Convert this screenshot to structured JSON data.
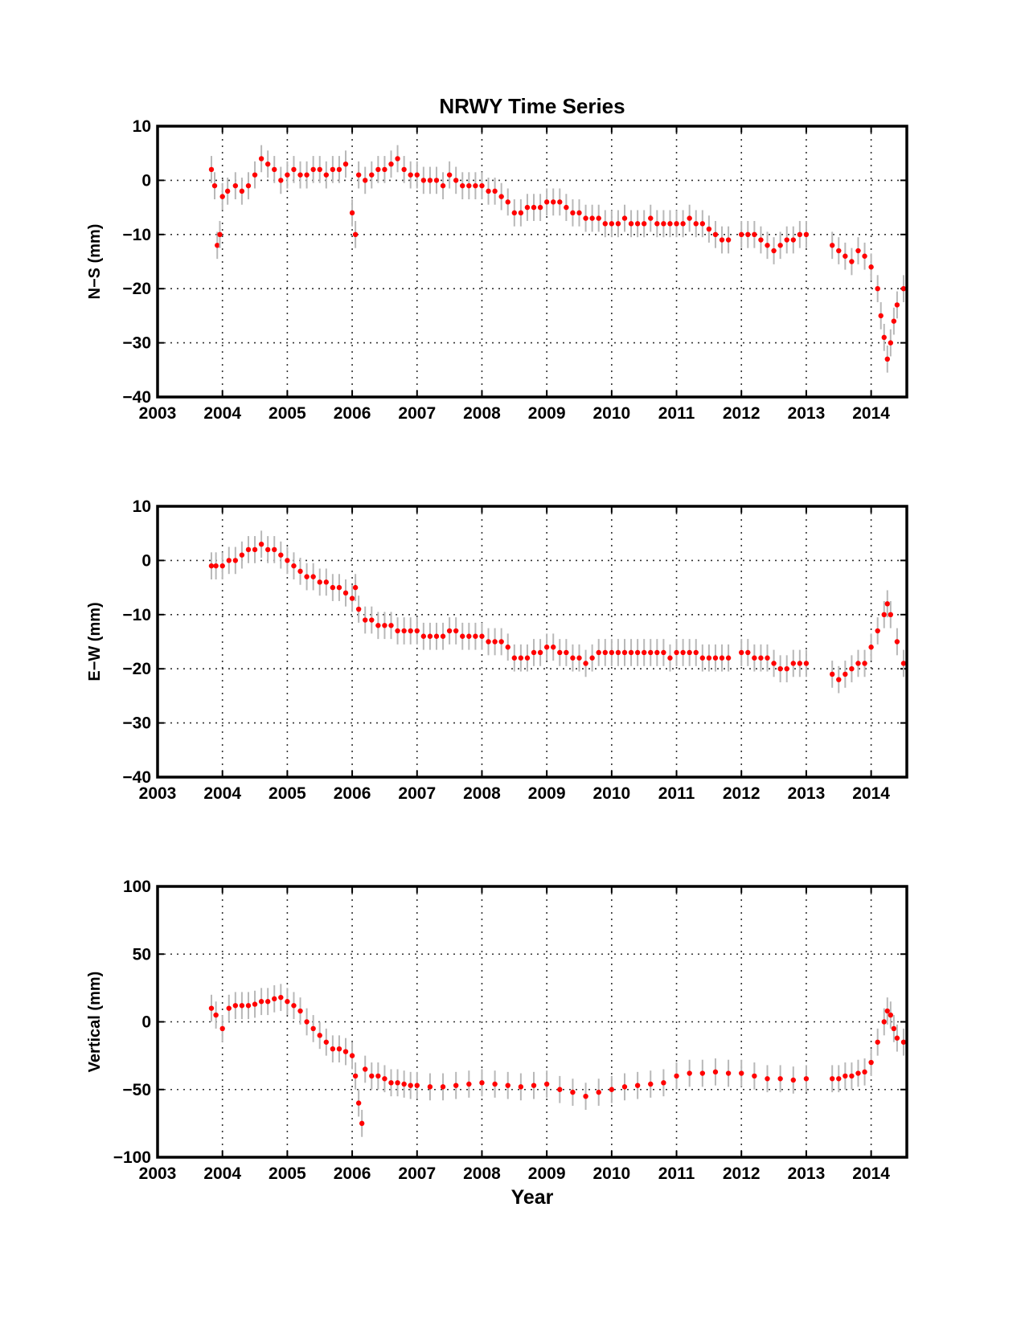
{
  "chart_data": [
    {
      "type": "scatter",
      "title": "NRWY Time Series",
      "ylabel": "N−S (mm)",
      "xlabel": "",
      "xlim": [
        2003,
        2014.55
      ],
      "ylim": [
        -40,
        10
      ],
      "xticks": [
        "2003",
        "2004",
        "2005",
        "2006",
        "2007",
        "2008",
        "2009",
        "2010",
        "2011",
        "2012",
        "2013",
        "2014"
      ],
      "yticks": [
        "10",
        "0",
        "−10",
        "−20",
        "−30",
        "−40"
      ],
      "grid": true,
      "marker_color": "#ff0000",
      "errorbar_color": "#b8b8b8",
      "series": [
        {
          "x": [
            2003.83,
            2003.88,
            2003.92,
            2003.96,
            2004.0,
            2004.08,
            2004.2,
            2004.3,
            2004.4,
            2004.5,
            2004.6,
            2004.7,
            2004.8,
            2004.9,
            2005.0,
            2005.1,
            2005.2,
            2005.3,
            2005.4,
            2005.5,
            2005.6,
            2005.7,
            2005.8,
            2005.9,
            2006.0,
            2006.05,
            2006.1,
            2006.2,
            2006.3,
            2006.4,
            2006.5,
            2006.6,
            2006.7,
            2006.8,
            2006.9,
            2007.0,
            2007.1,
            2007.2,
            2007.3,
            2007.4,
            2007.5,
            2007.6,
            2007.7,
            2007.8,
            2007.9,
            2008.0,
            2008.1,
            2008.2,
            2008.3,
            2008.4,
            2008.5,
            2008.6,
            2008.7,
            2008.8,
            2008.9,
            2009.0,
            2009.1,
            2009.2,
            2009.3,
            2009.4,
            2009.5,
            2009.6,
            2009.7,
            2009.8,
            2009.9,
            2010.0,
            2010.1,
            2010.2,
            2010.3,
            2010.4,
            2010.5,
            2010.6,
            2010.7,
            2010.8,
            2010.9,
            2011.0,
            2011.1,
            2011.2,
            2011.3,
            2011.4,
            2011.5,
            2011.6,
            2011.7,
            2011.8,
            2012.0,
            2012.1,
            2012.2,
            2012.3,
            2012.4,
            2012.5,
            2012.6,
            2012.7,
            2012.8,
            2012.9,
            2013.0,
            2013.4,
            2013.5,
            2013.6,
            2013.7,
            2013.8,
            2013.9,
            2014.0,
            2014.1,
            2014.15,
            2014.2,
            2014.25,
            2014.3,
            2014.35,
            2014.4,
            2014.5
          ],
          "y": [
            2,
            -1,
            -12,
            -10,
            -3,
            -2,
            -1,
            -2,
            -1,
            1,
            4,
            3,
            2,
            0,
            1,
            2,
            1,
            1,
            2,
            2,
            1,
            2,
            2,
            3,
            -6,
            -10,
            1,
            0,
            1,
            2,
            2,
            3,
            4,
            2,
            1,
            1,
            0,
            0,
            0,
            -1,
            1,
            0,
            -1,
            -1,
            -1,
            -1,
            -2,
            -2,
            -3,
            -4,
            -6,
            -6,
            -5,
            -5,
            -5,
            -4,
            -4,
            -4,
            -5,
            -6,
            -6,
            -7,
            -7,
            -7,
            -8,
            -8,
            -8,
            -7,
            -8,
            -8,
            -8,
            -7,
            -8,
            -8,
            -8,
            -8,
            -8,
            -7,
            -8,
            -8,
            -9,
            -10,
            -11,
            -11,
            -10,
            -10,
            -10,
            -11,
            -12,
            -13,
            -12,
            -11,
            -11,
            -10,
            -10,
            -12,
            -13,
            -14,
            -15,
            -13,
            -14,
            -16,
            -20,
            -25,
            -29,
            -33,
            -30,
            -26,
            -23,
            -20
          ]
        }
      ]
    },
    {
      "type": "scatter",
      "title": "",
      "ylabel": "E−W (mm)",
      "xlabel": "",
      "xlim": [
        2003,
        2014.55
      ],
      "ylim": [
        -40,
        10
      ],
      "xticks": [
        "2003",
        "2004",
        "2005",
        "2006",
        "2007",
        "2008",
        "2009",
        "2010",
        "2011",
        "2012",
        "2013",
        "2014"
      ],
      "yticks": [
        "10",
        "0",
        "−10",
        "−20",
        "−30",
        "−40"
      ],
      "grid": true,
      "marker_color": "#ff0000",
      "errorbar_color": "#b8b8b8",
      "series": [
        {
          "x": [
            2003.83,
            2003.9,
            2004.0,
            2004.1,
            2004.2,
            2004.3,
            2004.4,
            2004.5,
            2004.6,
            2004.7,
            2004.8,
            2004.9,
            2005.0,
            2005.1,
            2005.2,
            2005.3,
            2005.4,
            2005.5,
            2005.6,
            2005.7,
            2005.8,
            2005.9,
            2006.0,
            2006.05,
            2006.1,
            2006.2,
            2006.3,
            2006.4,
            2006.5,
            2006.6,
            2006.7,
            2006.8,
            2006.9,
            2007.0,
            2007.1,
            2007.2,
            2007.3,
            2007.4,
            2007.5,
            2007.6,
            2007.7,
            2007.8,
            2007.9,
            2008.0,
            2008.1,
            2008.2,
            2008.3,
            2008.4,
            2008.5,
            2008.6,
            2008.7,
            2008.8,
            2008.9,
            2009.0,
            2009.1,
            2009.2,
            2009.3,
            2009.4,
            2009.5,
            2009.6,
            2009.7,
            2009.8,
            2009.9,
            2010.0,
            2010.1,
            2010.2,
            2010.3,
            2010.4,
            2010.5,
            2010.6,
            2010.7,
            2010.8,
            2010.9,
            2011.0,
            2011.1,
            2011.2,
            2011.3,
            2011.4,
            2011.5,
            2011.6,
            2011.7,
            2011.8,
            2012.0,
            2012.1,
            2012.2,
            2012.3,
            2012.4,
            2012.5,
            2012.6,
            2012.7,
            2012.8,
            2012.9,
            2013.0,
            2013.4,
            2013.5,
            2013.6,
            2013.7,
            2013.8,
            2013.9,
            2014.0,
            2014.1,
            2014.2,
            2014.25,
            2014.3,
            2014.4,
            2014.5
          ],
          "y": [
            -1,
            -1,
            -1,
            0,
            0,
            1,
            2,
            2,
            3,
            2,
            2,
            1,
            0,
            -1,
            -2,
            -3,
            -3,
            -4,
            -4,
            -5,
            -5,
            -6,
            -7,
            -5,
            -9,
            -11,
            -11,
            -12,
            -12,
            -12,
            -13,
            -13,
            -13,
            -13,
            -14,
            -14,
            -14,
            -14,
            -13,
            -13,
            -14,
            -14,
            -14,
            -14,
            -15,
            -15,
            -15,
            -16,
            -18,
            -18,
            -18,
            -17,
            -17,
            -16,
            -16,
            -17,
            -17,
            -18,
            -18,
            -19,
            -18,
            -17,
            -17,
            -17,
            -17,
            -17,
            -17,
            -17,
            -17,
            -17,
            -17,
            -17,
            -18,
            -17,
            -17,
            -17,
            -17,
            -18,
            -18,
            -18,
            -18,
            -18,
            -17,
            -17,
            -18,
            -18,
            -18,
            -19,
            -20,
            -20,
            -19,
            -19,
            -19,
            -21,
            -22,
            -21,
            -20,
            -19,
            -19,
            -16,
            -13,
            -10,
            -8,
            -10,
            -15,
            -19
          ]
        }
      ]
    },
    {
      "type": "scatter",
      "title": "",
      "ylabel": "Vertical (mm)",
      "xlabel": "Year",
      "xlim": [
        2003,
        2014.55
      ],
      "ylim": [
        -100,
        100
      ],
      "xticks": [
        "2003",
        "2004",
        "2005",
        "2006",
        "2007",
        "2008",
        "2009",
        "2010",
        "2011",
        "2012",
        "2013",
        "2014"
      ],
      "yticks": [
        "100",
        "50",
        "0",
        "−50",
        "−100"
      ],
      "grid": true,
      "marker_color": "#ff0000",
      "errorbar_color": "#b8b8b8",
      "series": [
        {
          "x": [
            2003.83,
            2003.9,
            2004.0,
            2004.1,
            2004.2,
            2004.3,
            2004.4,
            2004.5,
            2004.6,
            2004.7,
            2004.8,
            2004.9,
            2005.0,
            2005.1,
            2005.2,
            2005.3,
            2005.4,
            2005.5,
            2005.6,
            2005.7,
            2005.8,
            2005.9,
            2006.0,
            2006.05,
            2006.1,
            2006.15,
            2006.2,
            2006.3,
            2006.4,
            2006.5,
            2006.6,
            2006.7,
            2006.8,
            2006.9,
            2007.0,
            2007.2,
            2007.4,
            2007.6,
            2007.8,
            2008.0,
            2008.2,
            2008.4,
            2008.6,
            2008.8,
            2009.0,
            2009.2,
            2009.4,
            2009.6,
            2009.8,
            2010.0,
            2010.2,
            2010.4,
            2010.6,
            2010.8,
            2011.0,
            2011.2,
            2011.4,
            2011.6,
            2011.8,
            2012.0,
            2012.2,
            2012.4,
            2012.6,
            2012.8,
            2013.0,
            2013.4,
            2013.5,
            2013.6,
            2013.7,
            2013.8,
            2013.9,
            2014.0,
            2014.1,
            2014.2,
            2014.25,
            2014.3,
            2014.35,
            2014.4,
            2014.5
          ],
          "y": [
            10,
            5,
            -5,
            10,
            12,
            12,
            12,
            13,
            15,
            15,
            17,
            18,
            15,
            12,
            8,
            0,
            -5,
            -10,
            -15,
            -20,
            -20,
            -22,
            -25,
            -40,
            -60,
            -75,
            -35,
            -40,
            -40,
            -42,
            -45,
            -45,
            -46,
            -47,
            -47,
            -48,
            -48,
            -47,
            -46,
            -45,
            -46,
            -47,
            -48,
            -47,
            -46,
            -50,
            -52,
            -55,
            -52,
            -50,
            -48,
            -47,
            -46,
            -45,
            -40,
            -38,
            -38,
            -37,
            -38,
            -38,
            -40,
            -42,
            -42,
            -43,
            -42,
            -42,
            -42,
            -40,
            -40,
            -38,
            -37,
            -30,
            -15,
            0,
            8,
            5,
            -5,
            -12,
            -15
          ]
        }
      ]
    }
  ]
}
